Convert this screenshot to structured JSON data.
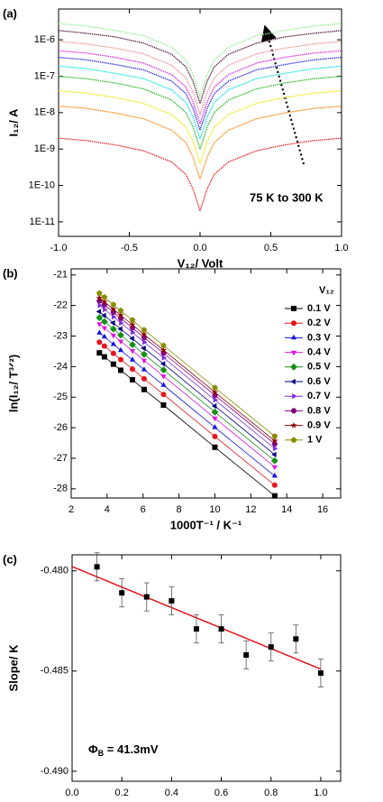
{
  "chart_data": [
    {
      "type": "line",
      "title": "(a)",
      "xlabel": "V₁₂/ Volt",
      "ylabel": "I₁₂/ A",
      "annotation": "75 K to 300 K",
      "log_y": true,
      "x": [
        -1,
        -0.8,
        -0.6,
        -0.4,
        -0.2,
        -0.1,
        -0.05,
        0,
        0.05,
        0.1,
        0.2,
        0.4,
        0.6,
        0.8,
        1
      ],
      "xlim": [
        -1,
        1
      ],
      "xticks": [
        {
          "value": -1,
          "label": "-1.0"
        },
        {
          "value": -0.5,
          "label": "-0.5"
        },
        {
          "value": 0,
          "label": "0.0"
        },
        {
          "value": 0.5,
          "label": "0.5"
        },
        {
          "value": 1,
          "label": "1.0"
        }
      ],
      "ylim": [
        4e-12,
        7e-06
      ],
      "yticks": [
        {
          "value": 1e-11,
          "label": "1E-11"
        },
        {
          "value": 1e-10,
          "label": "1E-10"
        },
        {
          "value": 1e-09,
          "label": "1E-9"
        },
        {
          "value": 1e-08,
          "label": "1E-8"
        },
        {
          "value": 1e-07,
          "label": "1E-7"
        },
        {
          "value": 1e-06,
          "label": "1E-6"
        }
      ],
      "series": [
        {
          "color": "#e8141c",
          "values": [
            2e-09,
            1.7e-09,
            1.3e-09,
            9e-10,
            4.4e-10,
            2e-10,
            8e-11,
            2e-11,
            8e-11,
            2e-10,
            4.4e-10,
            9e-10,
            1.3e-09,
            1.7e-09,
            2e-09
          ]
        },
        {
          "color": "#ff7f00",
          "values": [
            1.5e-08,
            1.3e-08,
            9.8e-09,
            6.8e-09,
            3.3e-09,
            1.5e-09,
            6e-10,
            1.5e-10,
            6e-10,
            1.5e-09,
            3.3e-09,
            6.8e-09,
            9.8e-09,
            1.3e-08,
            1.5e-08
          ]
        },
        {
          "color": "#e6e600",
          "values": [
            4e-08,
            3.4e-08,
            2.6e-08,
            1.8e-08,
            8.8e-09,
            4e-09,
            1.6e-09,
            4e-10,
            1.6e-09,
            4e-09,
            8.8e-09,
            1.8e-08,
            2.6e-08,
            3.4e-08,
            4e-08
          ]
        },
        {
          "color": "#22b422",
          "values": [
            1e-07,
            8.5e-08,
            6.5e-08,
            4.5e-08,
            2.2e-08,
            1e-08,
            4e-09,
            1e-09,
            4e-09,
            1e-08,
            2.2e-08,
            4.5e-08,
            6.5e-08,
            8.5e-08,
            1e-07
          ]
        },
        {
          "color": "#00e0e0",
          "values": [
            1.9e-07,
            1.6e-07,
            1.2e-07,
            8.6e-08,
            4.2e-08,
            1.9e-08,
            7.6e-09,
            1.9e-09,
            7.6e-09,
            1.9e-08,
            4.2e-08,
            8.6e-08,
            1.2e-07,
            1.6e-07,
            1.9e-07
          ]
        },
        {
          "color": "#1f1fe0",
          "values": [
            3.3e-07,
            2.8e-07,
            2.1e-07,
            1.5e-07,
            7.3e-08,
            3.3e-08,
            1.3e-08,
            3.3e-09,
            1.3e-08,
            3.3e-08,
            7.3e-08,
            1.5e-07,
            2.1e-07,
            2.8e-07,
            3.3e-07
          ]
        },
        {
          "color": "#e020e0",
          "values": [
            5e-07,
            4.3e-07,
            3.3e-07,
            2.3e-07,
            1.1e-07,
            5e-08,
            2e-08,
            5e-09,
            2e-08,
            5e-08,
            1.1e-07,
            2.3e-07,
            3.3e-07,
            4.3e-07,
            5e-07
          ]
        },
        {
          "color": "#f08c8c",
          "values": [
            9e-07,
            7.7e-07,
            5.9e-07,
            4.1e-07,
            2e-07,
            9e-08,
            3.6e-08,
            9e-09,
            3.6e-08,
            9e-08,
            2e-07,
            4.1e-07,
            5.9e-07,
            7.7e-07,
            9e-07
          ]
        },
        {
          "color": "#4b0f3c",
          "values": [
            1.8e-06,
            1.5e-06,
            1.2e-06,
            8.1e-07,
            4e-07,
            1.8e-07,
            7.2e-08,
            1.8e-08,
            7.2e-08,
            1.8e-07,
            4e-07,
            8.1e-07,
            1.2e-06,
            1.5e-06,
            1.8e-06
          ]
        },
        {
          "color": "#90f090",
          "values": [
            2.8e-06,
            2.4e-06,
            1.8e-06,
            1.3e-06,
            6.2e-07,
            2.8e-07,
            1.1e-07,
            2.8e-08,
            1.1e-07,
            2.8e-07,
            6.2e-07,
            1.3e-06,
            1.8e-06,
            2.4e-06,
            2.8e-06
          ]
        }
      ]
    },
    {
      "type": "line",
      "title": "(b)",
      "xlabel": "1000T⁻¹ / K⁻¹",
      "ylabel": "ln(I₁₂/ T³ᐟ²)",
      "legend_title": "V₁₂",
      "x": [
        3.57,
        3.85,
        4.35,
        4.76,
        5.41,
        6.06,
        7.14,
        10,
        13.33
      ],
      "xlim": [
        2,
        17
      ],
      "xticks": [
        2,
        4,
        6,
        8,
        10,
        12,
        14,
        16
      ],
      "ylim": [
        -28.3,
        -20.8
      ],
      "yticks": [
        -28,
        -27,
        -26,
        -25,
        -24,
        -23,
        -22,
        -21
      ],
      "series": [
        {
          "name": "0.1 V",
          "color": "#000000",
          "marker": "square",
          "values": [
            -23.55,
            -23.68,
            -23.92,
            -24.12,
            -24.43,
            -24.75,
            -25.26,
            -26.64,
            -28.23
          ]
        },
        {
          "name": "0.2 V",
          "color": "#e8141c",
          "marker": "circle",
          "values": [
            -23.2,
            -23.33,
            -23.57,
            -23.77,
            -24.08,
            -24.4,
            -24.91,
            -26.29,
            -27.88
          ]
        },
        {
          "name": "0.3 V",
          "color": "#1414e0",
          "marker": "triangle-up",
          "values": [
            -22.9,
            -23.03,
            -23.27,
            -23.47,
            -23.78,
            -24.1,
            -24.61,
            -25.99,
            -27.58
          ]
        },
        {
          "name": "0.4 V",
          "color": "#e014e0",
          "marker": "triangle-down",
          "values": [
            -22.6,
            -22.73,
            -22.97,
            -23.17,
            -23.48,
            -23.8,
            -24.31,
            -25.69,
            -27.28
          ]
        },
        {
          "name": "0.5 V",
          "color": "#149014",
          "marker": "diamond",
          "values": [
            -22.4,
            -22.53,
            -22.77,
            -22.97,
            -23.28,
            -23.6,
            -24.11,
            -25.49,
            -27.08
          ]
        },
        {
          "name": "0.6 V",
          "color": "#000080",
          "marker": "triangle-left",
          "values": [
            -22.2,
            -22.33,
            -22.57,
            -22.77,
            -23.08,
            -23.4,
            -23.91,
            -25.29,
            -26.88
          ]
        },
        {
          "name": "0.7 V",
          "color": "#7b2ee0",
          "marker": "triangle-right",
          "values": [
            -22.0,
            -22.13,
            -22.37,
            -22.57,
            -22.88,
            -23.2,
            -23.71,
            -25.09,
            -26.68
          ]
        },
        {
          "name": "0.8 V",
          "color": "#800080",
          "marker": "hexagon",
          "values": [
            -21.85,
            -21.98,
            -22.22,
            -22.42,
            -22.73,
            -23.05,
            -23.56,
            -24.94,
            -26.53
          ]
        },
        {
          "name": "0.9 V",
          "color": "#8b0000",
          "marker": "star",
          "values": [
            -21.75,
            -21.88,
            -22.12,
            -22.32,
            -22.63,
            -22.95,
            -23.46,
            -24.84,
            -26.43
          ]
        },
        {
          "name": "1 V",
          "color": "#8b8b00",
          "marker": "pentagon",
          "values": [
            -21.6,
            -21.73,
            -21.97,
            -22.17,
            -22.48,
            -22.8,
            -23.31,
            -24.69,
            -26.28
          ]
        }
      ]
    },
    {
      "type": "scatter",
      "title": "(c)",
      "xlabel": "V₁₂/ Volt",
      "ylabel": "Slope/ K",
      "annotation": [
        "Φ",
        "B",
        " = 41.3mV"
      ],
      "x": [
        0.1,
        0.2,
        0.3,
        0.4,
        0.5,
        0.6,
        0.7,
        0.8,
        0.9,
        1.0
      ],
      "values": [
        -0.4798,
        -0.4811,
        -0.4813,
        -0.4815,
        -0.4829,
        -0.4829,
        -0.4842,
        -0.4838,
        -0.4834,
        -0.4851
      ],
      "errors": [
        0.0007,
        0.0007,
        0.0007,
        0.0007,
        0.0007,
        0.0007,
        0.0007,
        0.0007,
        0.0007,
        0.0007
      ],
      "color": "#000000",
      "fit_color": "#e8141c",
      "xlim": [
        0,
        1.08
      ],
      "xticks": [
        {
          "value": 0,
          "label": "0.0"
        },
        {
          "value": 0.2,
          "label": "0.2"
        },
        {
          "value": 0.4,
          "label": "0.4"
        },
        {
          "value": 0.6,
          "label": "0.6"
        },
        {
          "value": 0.8,
          "label": "0.8"
        },
        {
          "value": 1,
          "label": "1.0"
        }
      ],
      "ylim": [
        -0.4905,
        -0.4792
      ],
      "yticks": [
        {
          "value": -0.49,
          "label": "-0.490"
        },
        {
          "value": -0.485,
          "label": "-0.485"
        },
        {
          "value": -0.48,
          "label": "-0.480"
        }
      ]
    }
  ]
}
